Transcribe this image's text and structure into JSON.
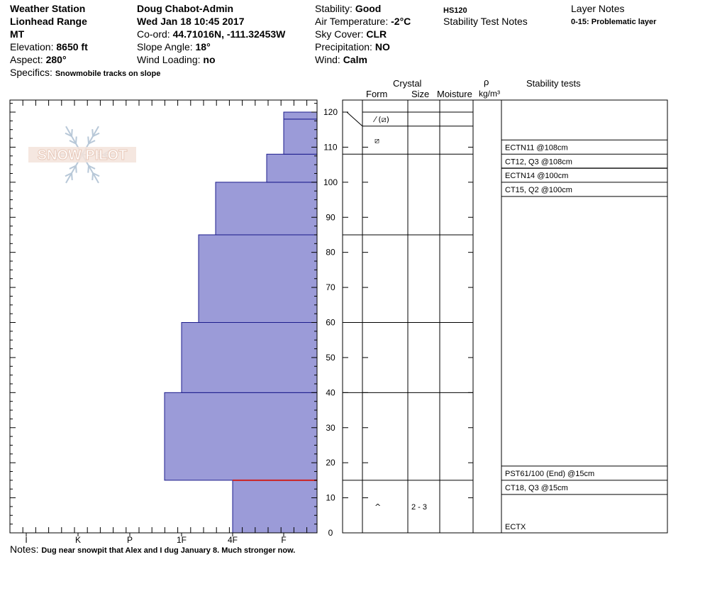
{
  "header": {
    "station_name": "Weather Station",
    "range": "Lionhead Range",
    "state": "MT",
    "elevation_label": "Elevation:",
    "elevation_value": "8650 ft",
    "aspect_label": "Aspect:",
    "aspect_value": "280°",
    "specifics_label": "Specifics:",
    "specifics_value": "Snowmobile tracks on slope",
    "observer": "Doug Chabot-Admin",
    "datetime": "Wed Jan 18 10:45 2017",
    "coord_label": "Co-ord:",
    "coord_value": "44.71016N, -111.32453W",
    "slope_label": "Slope Angle:",
    "slope_value": "18°",
    "wind_loading_label": "Wind Loading:",
    "wind_loading_value": "no",
    "stability_label": "Stability:",
    "stability_value": "Good",
    "air_temp_label": "Air Temperature:",
    "air_temp_value": "-2°C",
    "sky_label": "Sky Cover:",
    "sky_value": "CLR",
    "precip_label": "Precipitation:",
    "precip_value": "NO",
    "wind_label": "Wind:",
    "wind_value": "Calm",
    "hs": "HS120",
    "stability_test_notes": "Stability Test Notes",
    "layer_notes_title": "Layer Notes",
    "layer_notes_value": "0-15: Problematic layer"
  },
  "logo": {
    "text": "SNOW PILOT",
    "color": "#e8c8b8"
  },
  "columns": {
    "crystal": "Crystal",
    "form": "Form",
    "size": "Size",
    "moisture": "Moisture",
    "rho": "ρ",
    "density_unit": "kg/m³",
    "stability_tests": "Stability tests"
  },
  "notes": {
    "label": "Notes:",
    "text": "Dug near snowpit that Alex and I dug January 8. Much stronger now."
  },
  "chart_data": {
    "type": "bar",
    "orientation": "horizontal-step",
    "x_categories": [
      "I",
      "K",
      "P",
      "1F",
      "4F",
      "F"
    ],
    "y_ticks": [
      0,
      10,
      20,
      30,
      40,
      50,
      60,
      70,
      80,
      90,
      100,
      110,
      120
    ],
    "ylim": [
      0,
      124
    ],
    "bar_color": "#9b9bd8",
    "hardness_layers": [
      {
        "bottom": 0,
        "top": 15,
        "hardness": "4F"
      },
      {
        "bottom": 15,
        "top": 40,
        "hardness": "1F+"
      },
      {
        "bottom": 40,
        "top": 60,
        "hardness": "1F"
      },
      {
        "bottom": 60,
        "top": 85,
        "hardness": "1F-"
      },
      {
        "bottom": 85,
        "top": 100,
        "hardness": "4F+"
      },
      {
        "bottom": 100,
        "top": 108,
        "hardness": "F+"
      },
      {
        "bottom": 108,
        "top": 118,
        "hardness": "F"
      },
      {
        "bottom": 118,
        "top": 120,
        "hardness": "F"
      }
    ],
    "weak_layer_marker": {
      "depth": 15,
      "color": "#cc2222"
    },
    "layer_boundaries": [
      116,
      108,
      85,
      60,
      40,
      15
    ],
    "crystal_entries": [
      {
        "depth": 118,
        "form": "⁄ (⧄)",
        "size": ""
      },
      {
        "depth": 112,
        "form": "⧄",
        "size": ""
      },
      {
        "depth": 7.5,
        "form": "^",
        "size": "2 - 3"
      }
    ],
    "stability_tests": [
      {
        "text": "ECTN11 @108cm",
        "depth": 108
      },
      {
        "text": "CT12, Q3 @108cm",
        "depth": 108
      },
      {
        "text": "ECTN14 @100cm",
        "depth": 100
      },
      {
        "text": "CT15, Q2 @100cm",
        "depth": 100
      },
      {
        "text": "PST61/100 (End) @15cm",
        "depth": 15
      },
      {
        "text": "CT18, Q3 @15cm",
        "depth": 15
      },
      {
        "text": "ECTX",
        "depth": 0
      }
    ]
  }
}
